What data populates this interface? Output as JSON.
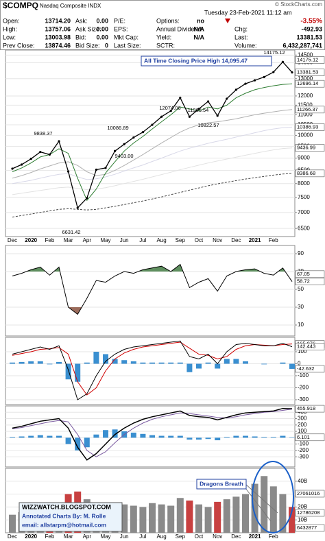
{
  "header": {
    "symbol": "$COMPQ",
    "name": "Nasdaq Composite INDX",
    "date": "Tuesday 23-Feb-2021 11:12 am",
    "source": "© StockCharts.com"
  },
  "quote": {
    "columns": [
      [
        {
          "label": "Open:",
          "value": "13714.20"
        },
        {
          "label": "High:",
          "value": "13757.06"
        },
        {
          "label": "Low:",
          "value": "13003.98"
        },
        {
          "label": "Prev Close:",
          "value": "13874.46"
        }
      ],
      [
        {
          "label": "Ask:",
          "value": "0.00"
        },
        {
          "label": "Ask Size:",
          "value": "0.00"
        },
        {
          "label": "Bid:",
          "value": "0.00"
        },
        {
          "label": "Bid Size:",
          "value": "0"
        }
      ],
      [
        {
          "label": "P/E:"
        },
        {
          "label": "EPS:"
        },
        {
          "label": "Mkt Cap:"
        },
        {
          "label": "Last Size:"
        }
      ],
      [
        {
          "label": "Options:",
          "value": "no"
        },
        {
          "label": "Annual Dividend:",
          "value": "N/A"
        },
        {
          "label": "Yield:",
          "value": "N/A"
        },
        {
          "label": "SCTR:"
        }
      ],
      [
        {
          "value": "-3.55%"
        },
        {
          "label": "Chg:",
          "value": "-492.93"
        },
        {
          "label": "Last:",
          "value": "13381.53"
        },
        {
          "label": "Volume:",
          "value": "6,432,287,741"
        }
      ]
    ]
  },
  "chart_data": [
    {
      "type": "line",
      "log_scale": true,
      "grid": true,
      "categories": [
        "Dec",
        null,
        "2020",
        null,
        "Feb",
        null,
        "Mar",
        null,
        "Apr",
        null,
        "May",
        null,
        "Jun",
        null,
        "Jul",
        null,
        "Aug",
        null,
        "Sep",
        null,
        "Oct",
        null,
        "Nov",
        null,
        "Dec",
        null,
        "2021",
        null,
        "Feb",
        null,
        null
      ],
      "series": [
        {
          "color": "#e2e2e2",
          "values": [
            7600,
            7650,
            7700,
            7750,
            7800,
            7850,
            7870,
            7820,
            7780,
            7800,
            7850,
            7920,
            8000,
            8080,
            8160,
            8250,
            8340,
            8430,
            8530,
            8620,
            8710,
            8800,
            8880,
            8960,
            9040,
            9120,
            9200,
            9280,
            9350,
            9410,
            9436.99
          ]
        },
        {
          "color": "#d8d8e8",
          "values": [
            8000,
            8060,
            8120,
            8200,
            8280,
            8350,
            8380,
            8250,
            8150,
            8180,
            8250,
            8350,
            8480,
            8600,
            8720,
            8860,
            9000,
            9150,
            9300,
            9420,
            9530,
            9640,
            9730,
            9820,
            9920,
            10020,
            10120,
            10220,
            10300,
            10360,
            10386.93
          ]
        },
        {
          "color": "#444444",
          "dash": true,
          "values": [
            6850,
            6900,
            6950,
            7000,
            7050,
            7100,
            7120,
            7100,
            7080,
            7100,
            7150,
            7200,
            7260,
            7320,
            7380,
            7450,
            7520,
            7600,
            7680,
            7760,
            7840,
            7920,
            7990,
            8050,
            8110,
            8170,
            8220,
            8270,
            8320,
            8360,
            8386.68
          ]
        },
        {
          "color": "#b0b0b0",
          "values": [
            8200,
            8300,
            8420,
            8560,
            8680,
            8800,
            8850,
            8700,
            8450,
            8300,
            8350,
            8500,
            8700,
            8920,
            9150,
            9400,
            9650,
            9900,
            10150,
            10350,
            10500,
            10600,
            10650,
            10720,
            10800,
            10900,
            11000,
            11080,
            11150,
            11220,
            11266.37
          ]
        },
        {
          "color": "#2e7d32",
          "values": [
            8450,
            8600,
            8800,
            9050,
            9150,
            9400,
            9200,
            8200,
            7400,
            7800,
            8400,
            8850,
            9300,
            9650,
            9950,
            10300,
            10650,
            11000,
            11400,
            11300,
            11200,
            11400,
            11300,
            11500,
            11900,
            12150,
            12350,
            12480,
            12580,
            12660,
            12696.14
          ]
        },
        {
          "color": "#000000",
          "width": 1.3,
          "points": true,
          "values": [
            8570,
            8735,
            8970,
            9260,
            9150,
            9730,
            8460,
            7150,
            7480,
            8530,
            8600,
            9300,
            9600,
            9900,
            10150,
            10500,
            10900,
            11200,
            11900,
            10900,
            11300,
            11700,
            10950,
            11850,
            12350,
            12700,
            12900,
            13100,
            13400,
            14050,
            13381.53
          ]
        }
      ],
      "ylim": [
        6300,
        14700
      ],
      "yticks": [
        14500,
        14000,
        13000,
        12000,
        11500,
        11000,
        10500,
        10000,
        9500,
        9000,
        8500,
        8000,
        7500,
        7000,
        6500
      ],
      "marker_labels": [
        14175.12,
        13381.53,
        12696.14,
        11266.37,
        10386.93,
        9436.99,
        8386.68
      ],
      "annotations": [
        "All Time Closing Price High 14,095.47",
        "14175.12",
        "12074.06",
        "11965.54",
        "10822.57",
        "10086.89",
        "9403.00",
        "9838.37",
        "6631.42"
      ]
    },
    {
      "type": "line",
      "grid": true,
      "series": [
        {
          "color": "#000000",
          "values": [
            65,
            68,
            72,
            75,
            66,
            75,
            30,
            22,
            40,
            60,
            58,
            65,
            70,
            68,
            72,
            74,
            76,
            70,
            78,
            52,
            58,
            62,
            48,
            65,
            70,
            72,
            73,
            68,
            66,
            74,
            58.72
          ],
          "fill_levels": [
            {
              "level": 70,
              "side": "above",
              "color": "#5f8f5f"
            },
            {
              "level": 30,
              "side": "below",
              "color": "#9b6b5b"
            }
          ]
        }
      ],
      "ylim": [
        0,
        100
      ],
      "yticks": [
        90,
        70,
        50,
        30,
        10
      ],
      "marker_labels": [
        58.72,
        67.05
      ]
    },
    {
      "type": "line",
      "grid": true,
      "series": [
        {
          "color": "#3a8fd0",
          "style": "bar",
          "values": [
            10,
            15,
            20,
            20,
            -5,
            15,
            -130,
            -150,
            10,
            100,
            80,
            40,
            30,
            20,
            10,
            10,
            10,
            10,
            10,
            -70,
            -40,
            10,
            -40,
            40,
            40,
            20,
            0,
            -5,
            0,
            10,
            -42.632
          ]
        },
        {
          "color": "#d00000",
          "values": [
            70,
            85,
            100,
            120,
            125,
            135,
            80,
            -150,
            -260,
            -200,
            -60,
            40,
            90,
            120,
            140,
            150,
            160,
            170,
            180,
            130,
            80,
            70,
            40,
            60,
            120,
            150,
            160,
            155,
            150,
            160,
            165.076
          ]
        },
        {
          "color": "#000000",
          "values": [
            80,
            100,
            120,
            140,
            120,
            150,
            -50,
            -300,
            -250,
            -100,
            20,
            80,
            120,
            140,
            150,
            160,
            170,
            180,
            190,
            60,
            40,
            80,
            0,
            100,
            160,
            170,
            160,
            150,
            150,
            170,
            142.443
          ]
        }
      ],
      "ylim": [
        -340,
        220
      ],
      "yticks": [
        100,
        0,
        -100,
        -200,
        -300
      ],
      "marker_labels": [
        165.076,
        142.443,
        -42.632
      ]
    },
    {
      "type": "line",
      "grid": true,
      "series": [
        {
          "color": "#3a8fd0",
          "style": "bar",
          "values": [
            10,
            20,
            30,
            40,
            30,
            30,
            -100,
            -200,
            -150,
            50,
            120,
            130,
            100,
            80,
            60,
            40,
            30,
            30,
            30,
            -30,
            -30,
            -20,
            -40,
            10,
            30,
            30,
            20,
            10,
            10,
            30,
            6.101
          ]
        },
        {
          "color": "#7a5aa0",
          "values": [
            140,
            160,
            190,
            220,
            250,
            270,
            250,
            50,
            -200,
            -300,
            -220,
            -80,
            50,
            150,
            230,
            290,
            330,
            360,
            390,
            380,
            360,
            340,
            320,
            310,
            330,
            360,
            380,
            400,
            410,
            430,
            450
          ]
        },
        {
          "color": "#000000",
          "width": 1.5,
          "values": [
            150,
            180,
            220,
            260,
            280,
            300,
            150,
            -150,
            -350,
            -250,
            -100,
            50,
            150,
            230,
            290,
            330,
            360,
            390,
            420,
            350,
            330,
            320,
            280,
            320,
            360,
            390,
            400,
            410,
            420,
            460,
            455.918
          ]
        }
      ],
      "ylim": [
        -460,
        500
      ],
      "yticks": [
        400,
        300,
        200,
        100,
        0,
        -100,
        -200,
        -300
      ],
      "marker_labels": [
        455.918,
        6.101
      ]
    },
    {
      "type": "bar",
      "grid": true,
      "up_color": "#8a8a8a",
      "down_color": "#c84040",
      "values": [
        14,
        16,
        18,
        17,
        19,
        20,
        30,
        32,
        26,
        22,
        20,
        21,
        22,
        21,
        20,
        23,
        22,
        21,
        27,
        25,
        22,
        20,
        24,
        26,
        28,
        30,
        38,
        44,
        36,
        30,
        20
      ],
      "ylim": [
        0,
        50
      ],
      "yticks": [
        {
          "value": 40,
          "label": "40B"
        },
        {
          "value": 30,
          "label": "30B"
        },
        {
          "value": 20,
          "label": "20B"
        },
        {
          "value": 10,
          "label": "10B"
        }
      ],
      "marker_labels": [
        "27061016",
        "12786208",
        "6432877"
      ]
    }
  ],
  "overlay": {
    "blog": "WIZZWATCH.BLOGSPOT.COM",
    "credit": "Annotated Charts By: M. Rolle",
    "email": "email: allstarpm@hotmail.com",
    "note": "Dragons Breath"
  }
}
